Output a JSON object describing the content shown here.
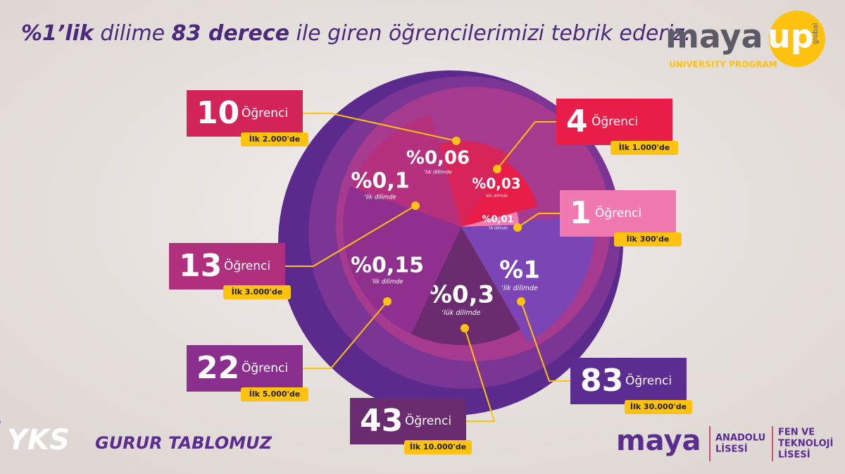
{
  "title": {
    "parts": [
      "%1’lik",
      " dilime ",
      "83 derece",
      " ile giren öğrencilerimizi tebrik ederiz."
    ]
  },
  "logo": {
    "brand": "maya",
    "up": "up",
    "global": "global",
    "program": "UNIVERSITY PROGRAM"
  },
  "slices": [
    {
      "label": "%1",
      "sub": "'lik dilimde"
    },
    {
      "label": "%0,3",
      "sub": "'lük dilimde"
    },
    {
      "label": "%0,15",
      "sub": "'lik dilimde"
    },
    {
      "label": "%0,1",
      "sub": "'lik dilimde"
    },
    {
      "label": "%0,06",
      "sub": "'lık dilimde"
    },
    {
      "label": "%0,03",
      "sub": "'lük dilimde"
    },
    {
      "label": "%0,01",
      "sub": "'lik dilimde"
    }
  ],
  "callouts": [
    {
      "count": "83",
      "word": "Öğrenci",
      "badge": "İlk 30.000'de"
    },
    {
      "count": "43",
      "word": "Öğrenci",
      "badge": "İlk 10.000'de"
    },
    {
      "count": "22",
      "word": "Öğrenci",
      "badge": "İlk 5.000'de"
    },
    {
      "count": "13",
      "word": "Öğrenci",
      "badge": "İlk 3.000'de"
    },
    {
      "count": "10",
      "word": "Öğrenci",
      "badge": "İlk 2.000'de"
    },
    {
      "count": "4",
      "word": "Öğrenci",
      "badge": "İlk 1.000'de"
    },
    {
      "count": "1",
      "word": "Öğrenci",
      "badge": "İlk 300'de"
    }
  ],
  "footer": {
    "yks": "YKS",
    "tagline": "GURUR TABLOMUZ",
    "brand": "maya",
    "school1": [
      "ANADOLU",
      "LİSESİ"
    ],
    "school2": [
      "FEN VE",
      "TEKNOLOJİ",
      "LİSESİ"
    ]
  }
}
